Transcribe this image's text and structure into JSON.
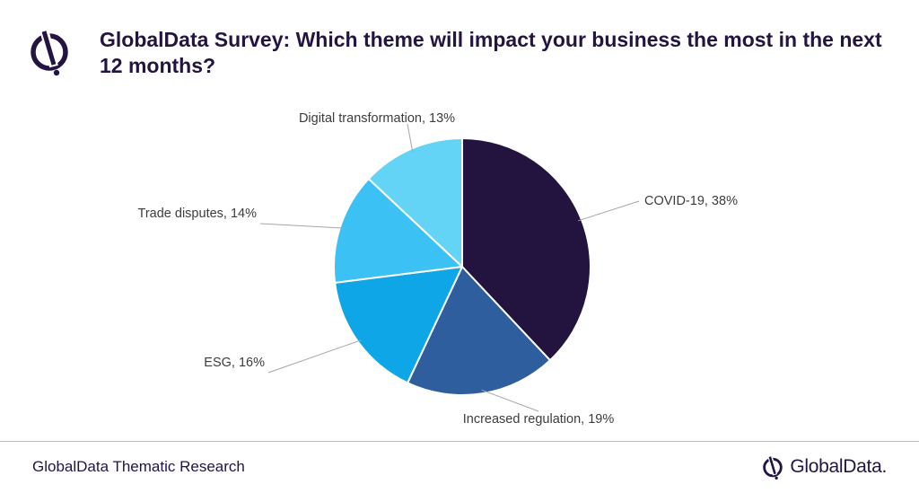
{
  "header": {
    "logo_icon": "globaldata-mark-icon",
    "title": "GlobalData Survey: Which theme will impact your business the most in the next 12 months?"
  },
  "chart_data": {
    "type": "pie",
    "title": "GlobalData Survey: Which theme will impact your business the most in the next 12 months?",
    "start_angle_deg": 0,
    "direction": "clockwise",
    "slices": [
      {
        "label": "COVID-19",
        "value": 38,
        "display": "COVID-19, 38%",
        "color": "#23143f",
        "label_side": "right"
      },
      {
        "label": "Increased regulation",
        "value": 19,
        "display": "Increased regulation, 19%",
        "color": "#2e5e9e",
        "label_side": "bottom"
      },
      {
        "label": "ESG",
        "value": 16,
        "display": "ESG, 16%",
        "color": "#0fa6e7",
        "label_side": "left"
      },
      {
        "label": "Trade disputes",
        "value": 14,
        "display": "Trade disputes, 14%",
        "color": "#3cc1f5",
        "label_side": "left"
      },
      {
        "label": "Digital transformation",
        "value": 13,
        "display": "Digital transformation, 13%",
        "color": "#63d4f6",
        "label_side": "top"
      }
    ]
  },
  "footer": {
    "source": "GlobalData Thematic Research",
    "brand_icon": "globaldata-mark-icon",
    "brand_name": "GlobalData."
  }
}
